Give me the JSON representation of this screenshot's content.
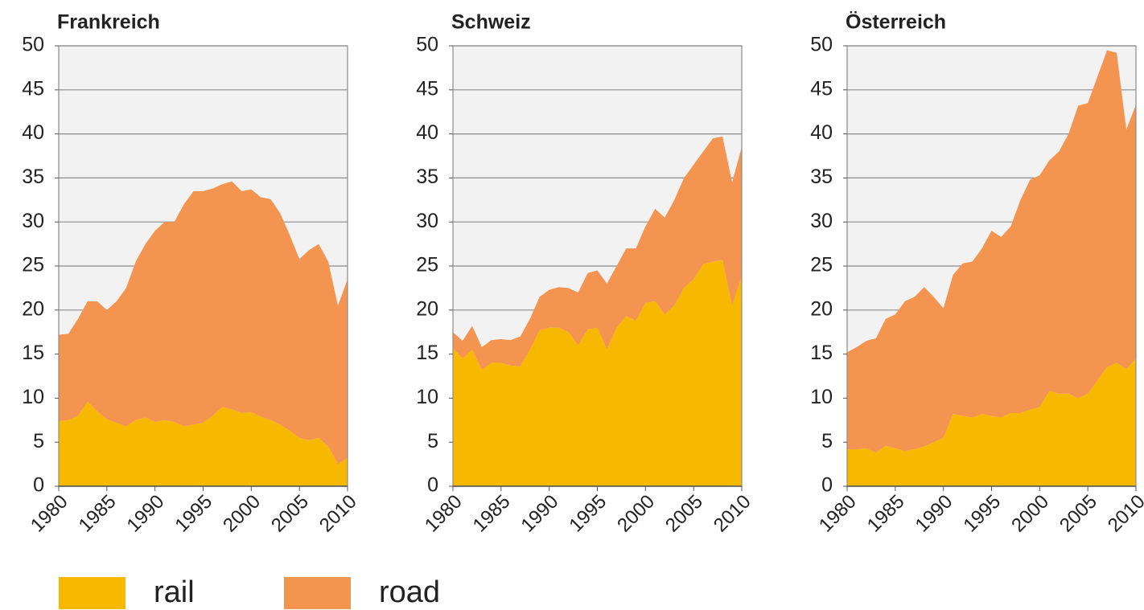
{
  "chart_data": [
    {
      "type": "stacked-area",
      "title": "Frankreich",
      "x": [
        1980,
        1981,
        1982,
        1983,
        1984,
        1985,
        1986,
        1987,
        1988,
        1989,
        1990,
        1991,
        1992,
        1993,
        1994,
        1995,
        1996,
        1997,
        1998,
        1999,
        2000,
        2001,
        2002,
        2003,
        2004,
        2005,
        2006,
        2007,
        2008,
        2009,
        2010
      ],
      "series": [
        {
          "name": "rail",
          "color": "#f8b800",
          "values": [
            7.4,
            7.5,
            8,
            9.6,
            8.5,
            7.6,
            7.2,
            6.8,
            7.5,
            7.8,
            7.3,
            7.5,
            7.3,
            6.8,
            7,
            7.2,
            8,
            9,
            8.7,
            8.3,
            8.4,
            7.9,
            7.5,
            7,
            6.3,
            5.5,
            5.2,
            5.5,
            4.5,
            2.5,
            3.2
          ]
        },
        {
          "name": "road",
          "color": "#f39450",
          "values": [
            9.8,
            9.8,
            11,
            11.4,
            12.5,
            12.4,
            13.8,
            15.7,
            18,
            19.7,
            21.7,
            22.5,
            22.7,
            25.2,
            26.5,
            26.3,
            25.8,
            25.3,
            25.9,
            25.2,
            25.3,
            24.9,
            25.1,
            24,
            22.2,
            20.3,
            21.6,
            22,
            21,
            18,
            20.3
          ]
        }
      ],
      "xlim": [
        1980,
        2010
      ],
      "xticks": [
        1980,
        1985,
        1990,
        1995,
        2000,
        2005,
        2010
      ],
      "ylim": [
        0,
        50
      ],
      "yticks": [
        0,
        5,
        10,
        15,
        20,
        25,
        30,
        35,
        40,
        45,
        50
      ],
      "grid": true
    },
    {
      "type": "stacked-area",
      "title": "Schweiz",
      "x": [
        1980,
        1981,
        1982,
        1983,
        1984,
        1985,
        1986,
        1987,
        1988,
        1989,
        1990,
        1991,
        1992,
        1993,
        1994,
        1995,
        1996,
        1997,
        1998,
        1999,
        2000,
        2001,
        2002,
        2003,
        2004,
        2005,
        2006,
        2007,
        2008,
        2009,
        2010
      ],
      "series": [
        {
          "color": "#f8b800",
          "values": [
            15.7,
            14.5,
            15.5,
            13.2,
            14,
            14,
            13.7,
            13.6,
            15.5,
            17.7,
            18,
            18,
            17.5,
            16,
            17.8,
            18,
            15.5,
            18,
            19.3,
            18.8,
            20.8,
            21,
            19.5,
            20.5,
            22.5,
            23.5,
            25.2,
            25.5,
            25.7,
            20.5,
            23.8
          ]
        },
        {
          "color": "#f39450",
          "values": [
            1.8,
            2,
            2.7,
            2.6,
            2.6,
            2.7,
            2.9,
            3.4,
            3.5,
            3.8,
            4.3,
            4.6,
            5,
            6,
            6.4,
            6.5,
            7.5,
            7,
            7.7,
            8.2,
            8.7,
            10.5,
            11,
            12,
            12.5,
            13,
            12.8,
            14,
            14,
            14,
            14.7
          ]
        }
      ],
      "xlim": [
        1980,
        2010
      ],
      "xticks": [
        1980,
        1985,
        1990,
        1995,
        2000,
        2005,
        2010
      ],
      "ylim": [
        0,
        50
      ],
      "yticks": [
        0,
        5,
        10,
        15,
        20,
        25,
        30,
        35,
        40,
        45,
        50
      ],
      "grid": true
    },
    {
      "type": "stacked-area",
      "title": "Österreich",
      "x": [
        1980,
        1981,
        1982,
        1983,
        1984,
        1985,
        1986,
        1987,
        1988,
        1989,
        1990,
        1991,
        1992,
        1993,
        1994,
        1995,
        1996,
        1997,
        1998,
        1999,
        2000,
        2001,
        2002,
        2003,
        2004,
        2005,
        2006,
        2007,
        2008,
        2009,
        2010
      ],
      "series": [
        {
          "color": "#f8b800",
          "values": [
            4.2,
            4.2,
            4.3,
            3.8,
            4.6,
            4.3,
            4,
            4.2,
            4.5,
            5,
            5.5,
            8.2,
            8,
            7.8,
            8.2,
            8,
            7.8,
            8.3,
            8.3,
            8.7,
            9,
            10.8,
            10.5,
            10.5,
            10,
            10.5,
            12,
            13.5,
            14,
            13.3,
            14.5
          ]
        },
        {
          "color": "#f39450",
          "values": [
            11,
            11.6,
            12.2,
            13,
            14.4,
            15.2,
            17,
            17.3,
            18.1,
            16.5,
            14.7,
            15.8,
            17.3,
            17.7,
            18.8,
            21,
            20.5,
            21.2,
            24.2,
            26.1,
            26.3,
            26.2,
            27.5,
            29.5,
            33.2,
            33,
            34.5,
            36,
            35.2,
            27.2,
            28.8
          ]
        }
      ],
      "xlim": [
        1980,
        2010
      ],
      "xticks": [
        1980,
        1985,
        1990,
        1995,
        2000,
        2005,
        2010
      ],
      "ylim": [
        0,
        50
      ],
      "yticks": [
        0,
        5,
        10,
        15,
        20,
        25,
        30,
        35,
        40,
        45,
        50
      ],
      "grid": true
    }
  ]
}
